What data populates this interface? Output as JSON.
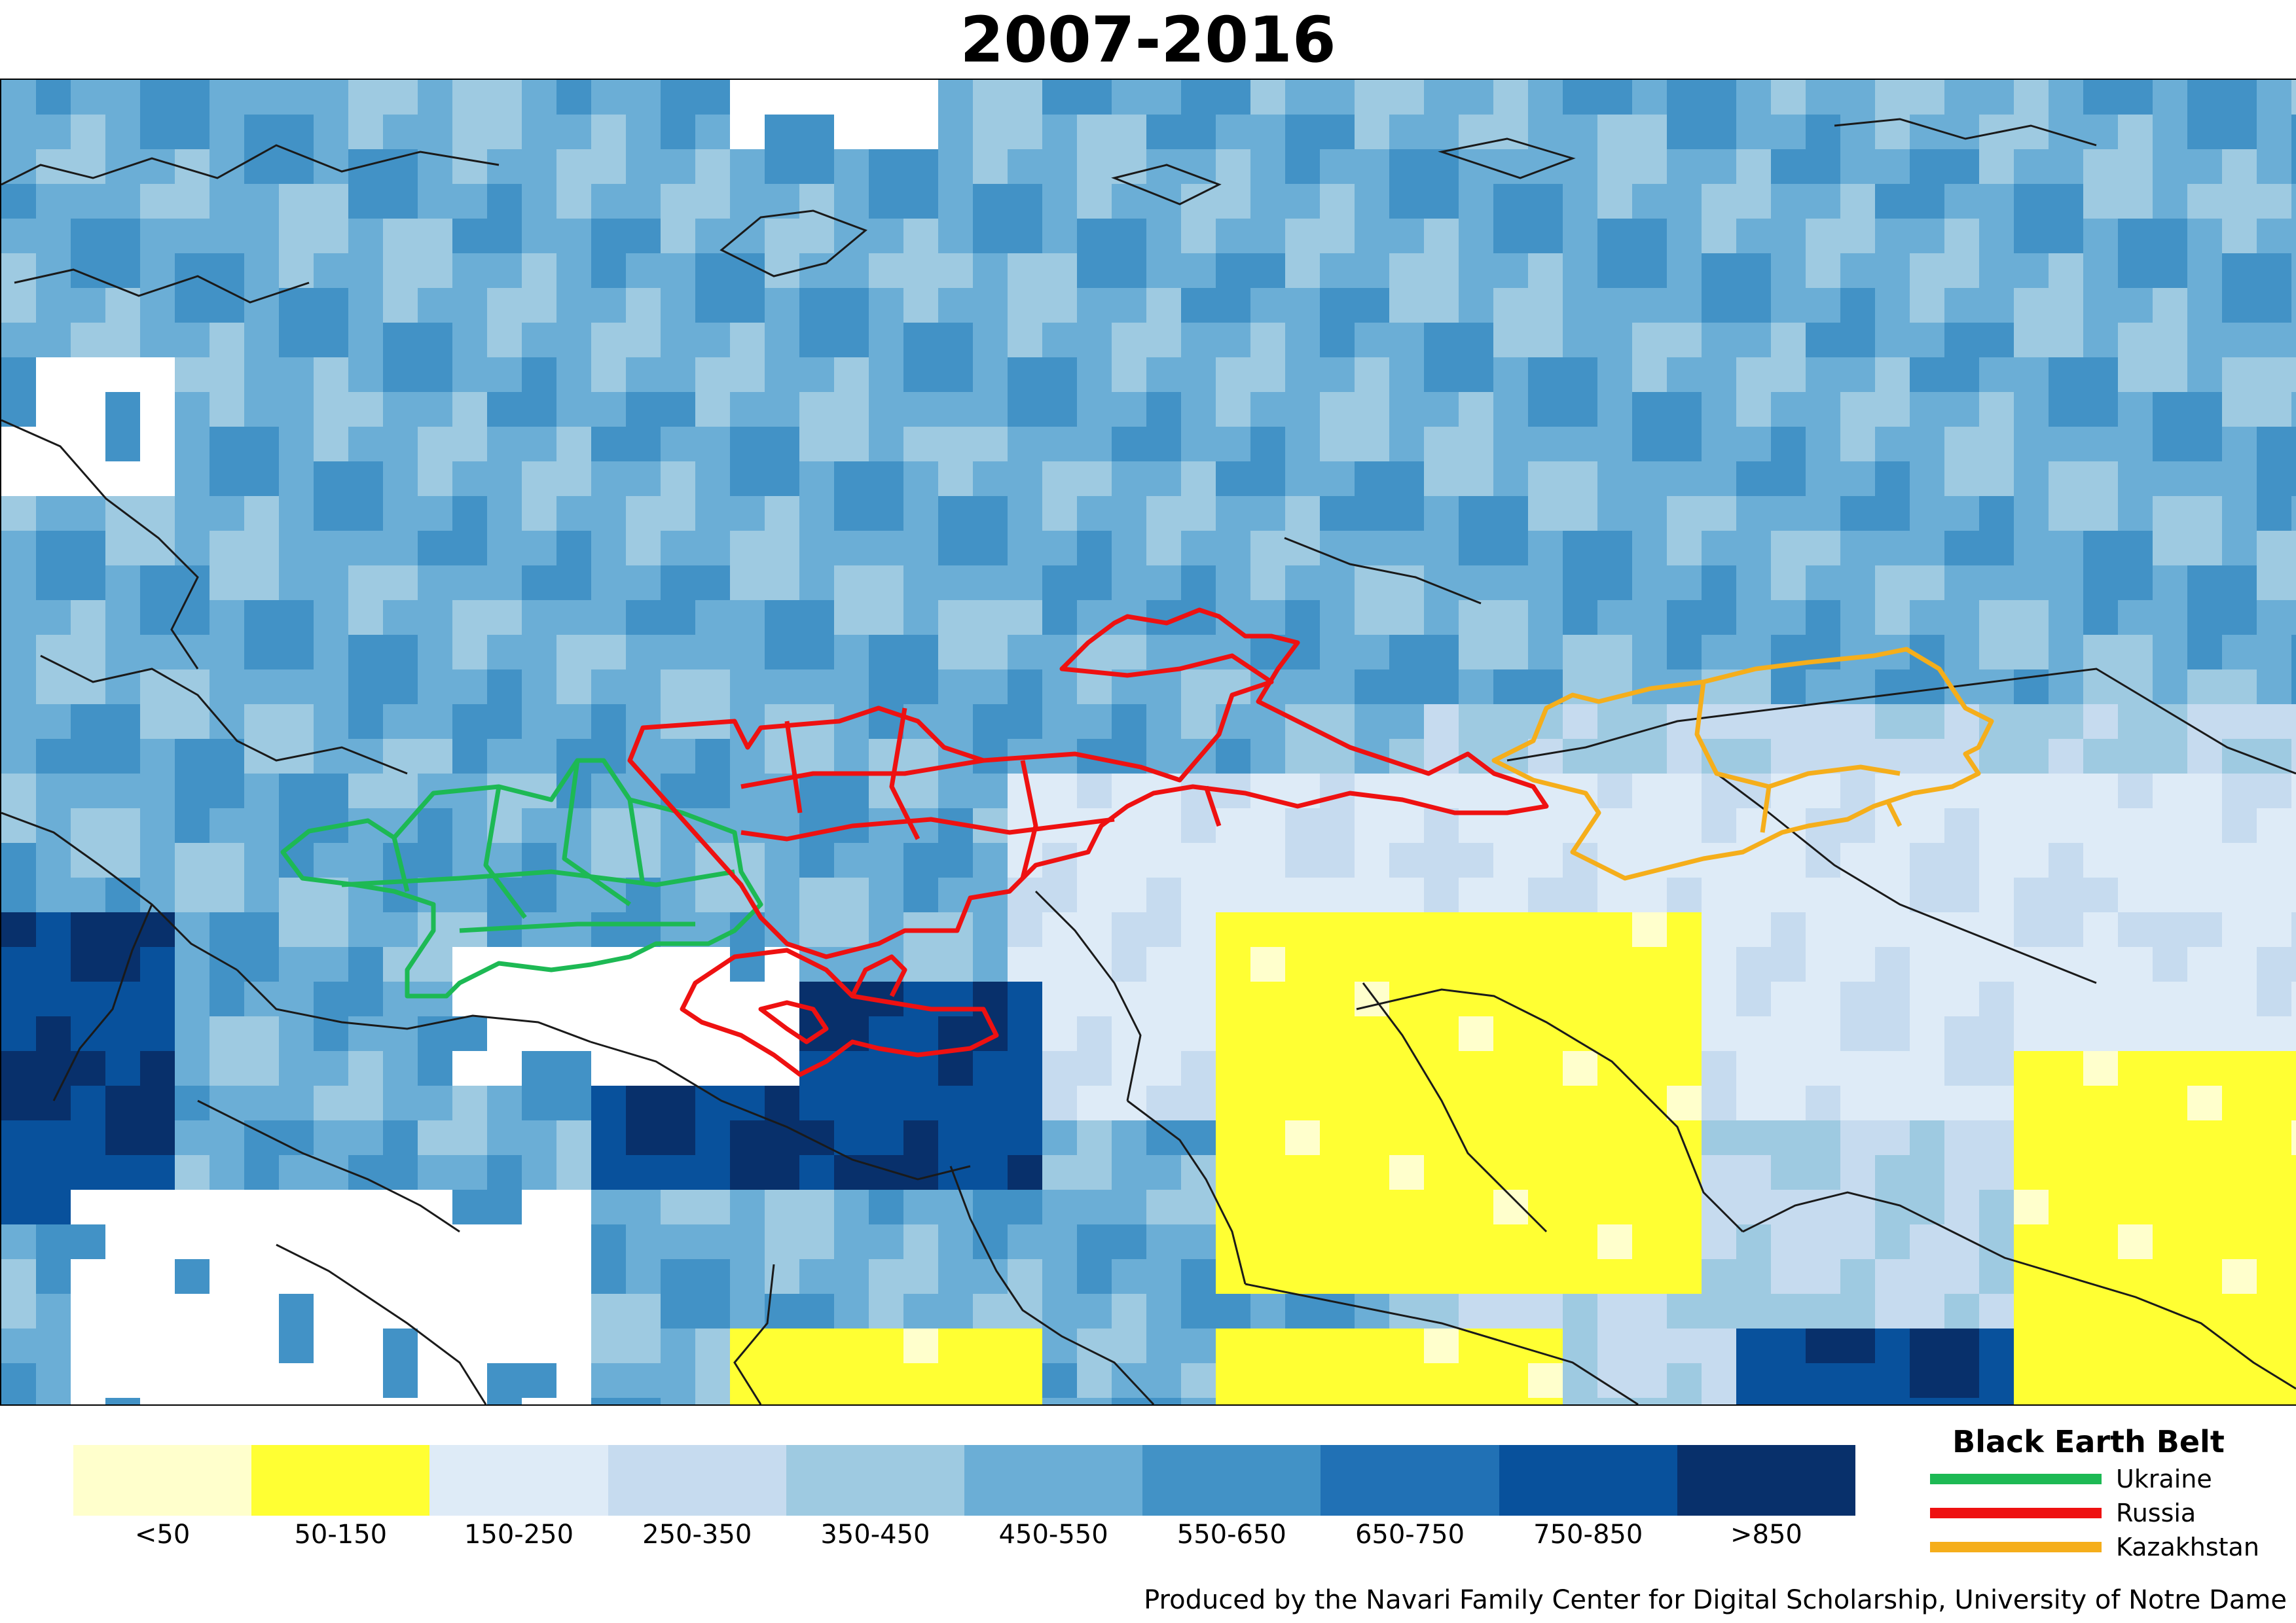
{
  "title": "2007-2016",
  "colorbar": {
    "bins": [
      {
        "label": "<50",
        "color": "#ffffcc"
      },
      {
        "label": "50-150",
        "color": "#ffff33"
      },
      {
        "label": "150-250",
        "color": "#deebf7"
      },
      {
        "label": "250-350",
        "color": "#c6dbef"
      },
      {
        "label": "350-450",
        "color": "#9ecae1"
      },
      {
        "label": "450-550",
        "color": "#6baed6"
      },
      {
        "label": "550-650",
        "color": "#4292c6"
      },
      {
        "label": "650-750",
        "color": "#2171b5"
      },
      {
        "label": "750-850",
        "color": "#08519c"
      },
      {
        "label": ">850",
        "color": "#08306b"
      }
    ]
  },
  "legend": {
    "title": "Black Earth Belt",
    "items": [
      {
        "label": "Ukraine",
        "color": "#1db954"
      },
      {
        "label": "Russia",
        "color": "#ee1111"
      },
      {
        "label": "Kazakhstan",
        "color": "#f5ae1b"
      }
    ]
  },
  "credit": "Produced by the Navari Family Center for Digital Scholarship, University of Notre Dame"
}
